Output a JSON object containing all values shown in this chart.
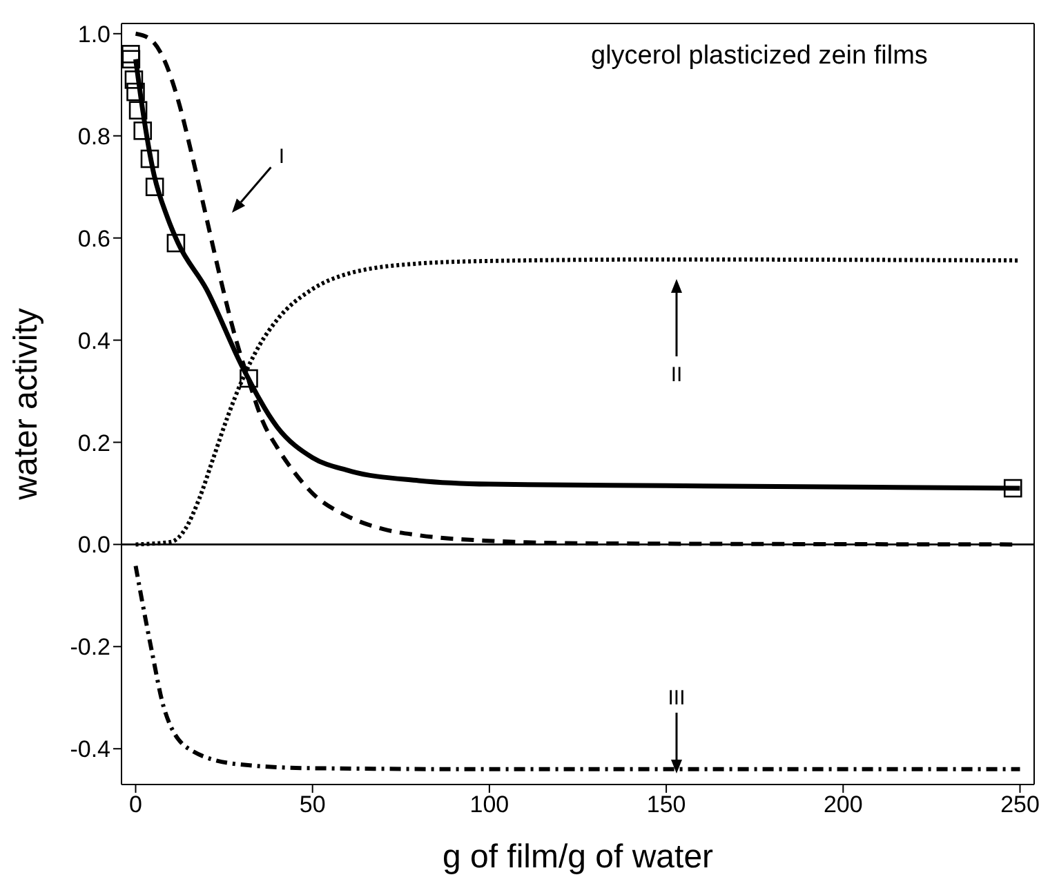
{
  "chart_data": {
    "type": "line",
    "title": "glycerol plasticized zein films",
    "xlabel": "g of film/g of water",
    "ylabel": "water activity",
    "xlim": [
      -4,
      254
    ],
    "ylim": [
      -0.47,
      1.02
    ],
    "xticks": [
      0,
      50,
      100,
      150,
      200,
      250
    ],
    "yticks": [
      {
        "value": -0.4,
        "label": "-0.4"
      },
      {
        "value": -0.2,
        "label": "-0.2"
      },
      {
        "value": 0,
        "label": "0.0"
      },
      {
        "value": 0.2,
        "label": "0.2"
      },
      {
        "value": 0.4,
        "label": "0.4"
      },
      {
        "value": 0.6,
        "label": "0.6"
      },
      {
        "value": 0.8,
        "label": "0.8"
      },
      {
        "value": 1,
        "label": "1.0"
      }
    ],
    "ref_lines": [
      {
        "axis": "y",
        "value": 0,
        "color": "#000000"
      }
    ],
    "annotations": [
      "I",
      "II",
      "III"
    ],
    "series": [
      {
        "type": "scatter",
        "marker": "square",
        "color": "#000000",
        "x": [
          -1.4,
          -1.3,
          -0.5,
          0,
          0.7,
          2,
          4,
          5.4,
          11.4,
          32,
          248
        ],
        "values": [
          0.96,
          0.95,
          0.91,
          0.886,
          0.85,
          0.81,
          0.755,
          0.7,
          0.59,
          0.325,
          0.11
        ]
      },
      {
        "line_style": "solid",
        "color": "#000000",
        "x": [
          0,
          2,
          5,
          9,
          12,
          20,
          30,
          40,
          50,
          60,
          80,
          100,
          150,
          250
        ],
        "values": [
          0.95,
          0.85,
          0.73,
          0.64,
          0.59,
          0.5,
          0.35,
          0.23,
          0.17,
          0.145,
          0.125,
          0.118,
          0.115,
          0.11
        ]
      },
      {
        "line_style": "dashed",
        "color": "#000000",
        "x": [
          0,
          4,
          8,
          12,
          16,
          20,
          24,
          28,
          32,
          36,
          40,
          45,
          50,
          60,
          70,
          80,
          100,
          130,
          250
        ],
        "values": [
          1,
          0.99,
          0.95,
          0.87,
          0.76,
          0.64,
          0.52,
          0.41,
          0.32,
          0.24,
          0.19,
          0.14,
          0.1,
          0.055,
          0.03,
          0.018,
          0.007,
          0.002,
          0
        ]
      },
      {
        "line_style": "dotted",
        "color": "#000000",
        "x": [
          0,
          10,
          14,
          18,
          22,
          26,
          30,
          35,
          40,
          50,
          60,
          80,
          100,
          150,
          250
        ],
        "values": [
          0,
          0.005,
          0.03,
          0.09,
          0.17,
          0.25,
          0.32,
          0.39,
          0.44,
          0.5,
          0.53,
          0.55,
          0.555,
          0.558,
          0.556
        ]
      },
      {
        "line_style": "dashdot",
        "color": "#000000",
        "x": [
          0,
          1.4,
          4.6,
          8,
          15,
          28.5,
          49,
          100,
          250
        ],
        "values": [
          -0.042,
          -0.095,
          -0.21,
          -0.32,
          -0.4,
          -0.43,
          -0.438,
          -0.44,
          -0.44
        ]
      }
    ]
  }
}
